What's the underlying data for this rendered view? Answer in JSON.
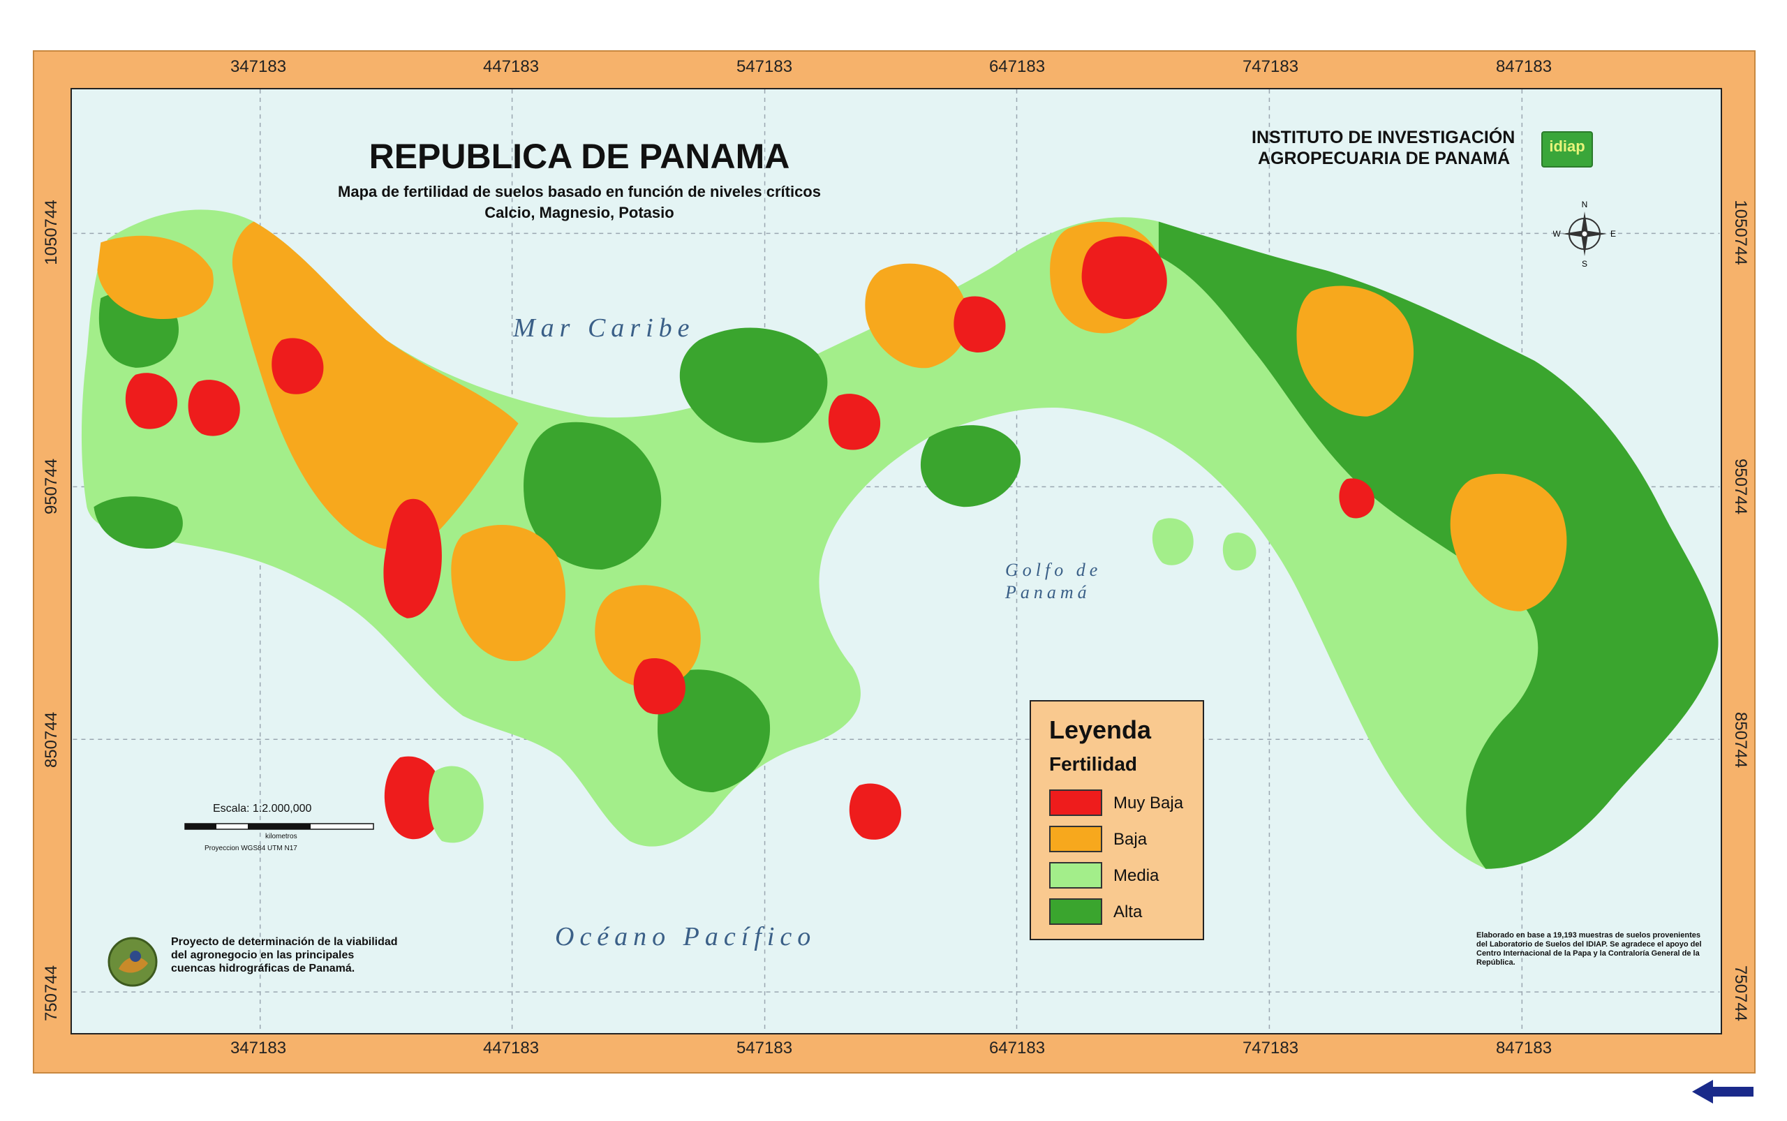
{
  "map": {
    "title": "REPUBLICA DE PANAMA",
    "subtitle_line1": "Mapa de fertilidad de suelos basado en función de niveles críticos",
    "subtitle_line2": "Calcio, Magnesio, Potasio",
    "sea_caribbean": "Mar Caribe",
    "sea_pacific": "Océano Pacífico",
    "gulf_line1": "Golfo de",
    "gulf_line2": "Panamá"
  },
  "institute": {
    "line1": "INSTITUTO DE INVESTIGACIÓN",
    "line2": "AGROPECUARIA DE PANAMÁ",
    "logo_text": "idiap"
  },
  "compass": {
    "north": "N",
    "south": "S",
    "east": "E",
    "west": "W"
  },
  "grid": {
    "x_ticks": [
      "347183",
      "447183",
      "547183",
      "647183",
      "747183",
      "847183"
    ],
    "y_ticks": [
      "1050744",
      "950744",
      "850744",
      "750744"
    ]
  },
  "legend": {
    "title": "Leyenda",
    "subtitle": "Fertilidad",
    "items": [
      {
        "label": "Muy Baja",
        "color": "#ee1c1c"
      },
      {
        "label": "Baja",
        "color": "#f7a81d"
      },
      {
        "label": "Media",
        "color": "#a3ee8a"
      },
      {
        "label": "Alta",
        "color": "#3aa52e"
      }
    ]
  },
  "scale": {
    "label": "Escala: 1:2.000,000",
    "units": "kilometros",
    "projection": "Proyeccion WGS84 UTM N17"
  },
  "project": {
    "text": "Proyecto de determinación de la viabilidad del agronegocio en las principales cuencas hidrográficas de Panamá."
  },
  "credit": {
    "text": "Elaborado en base a 19,193 muestras de suelos provenientes del Laboratorio de Suelos del IDIAP. Se agradece el apoyo del Centro Internacional de la Papa y la Contraloría General de la República."
  },
  "colors": {
    "frame": "#f6b26b",
    "sea": "#e4f4f4"
  }
}
